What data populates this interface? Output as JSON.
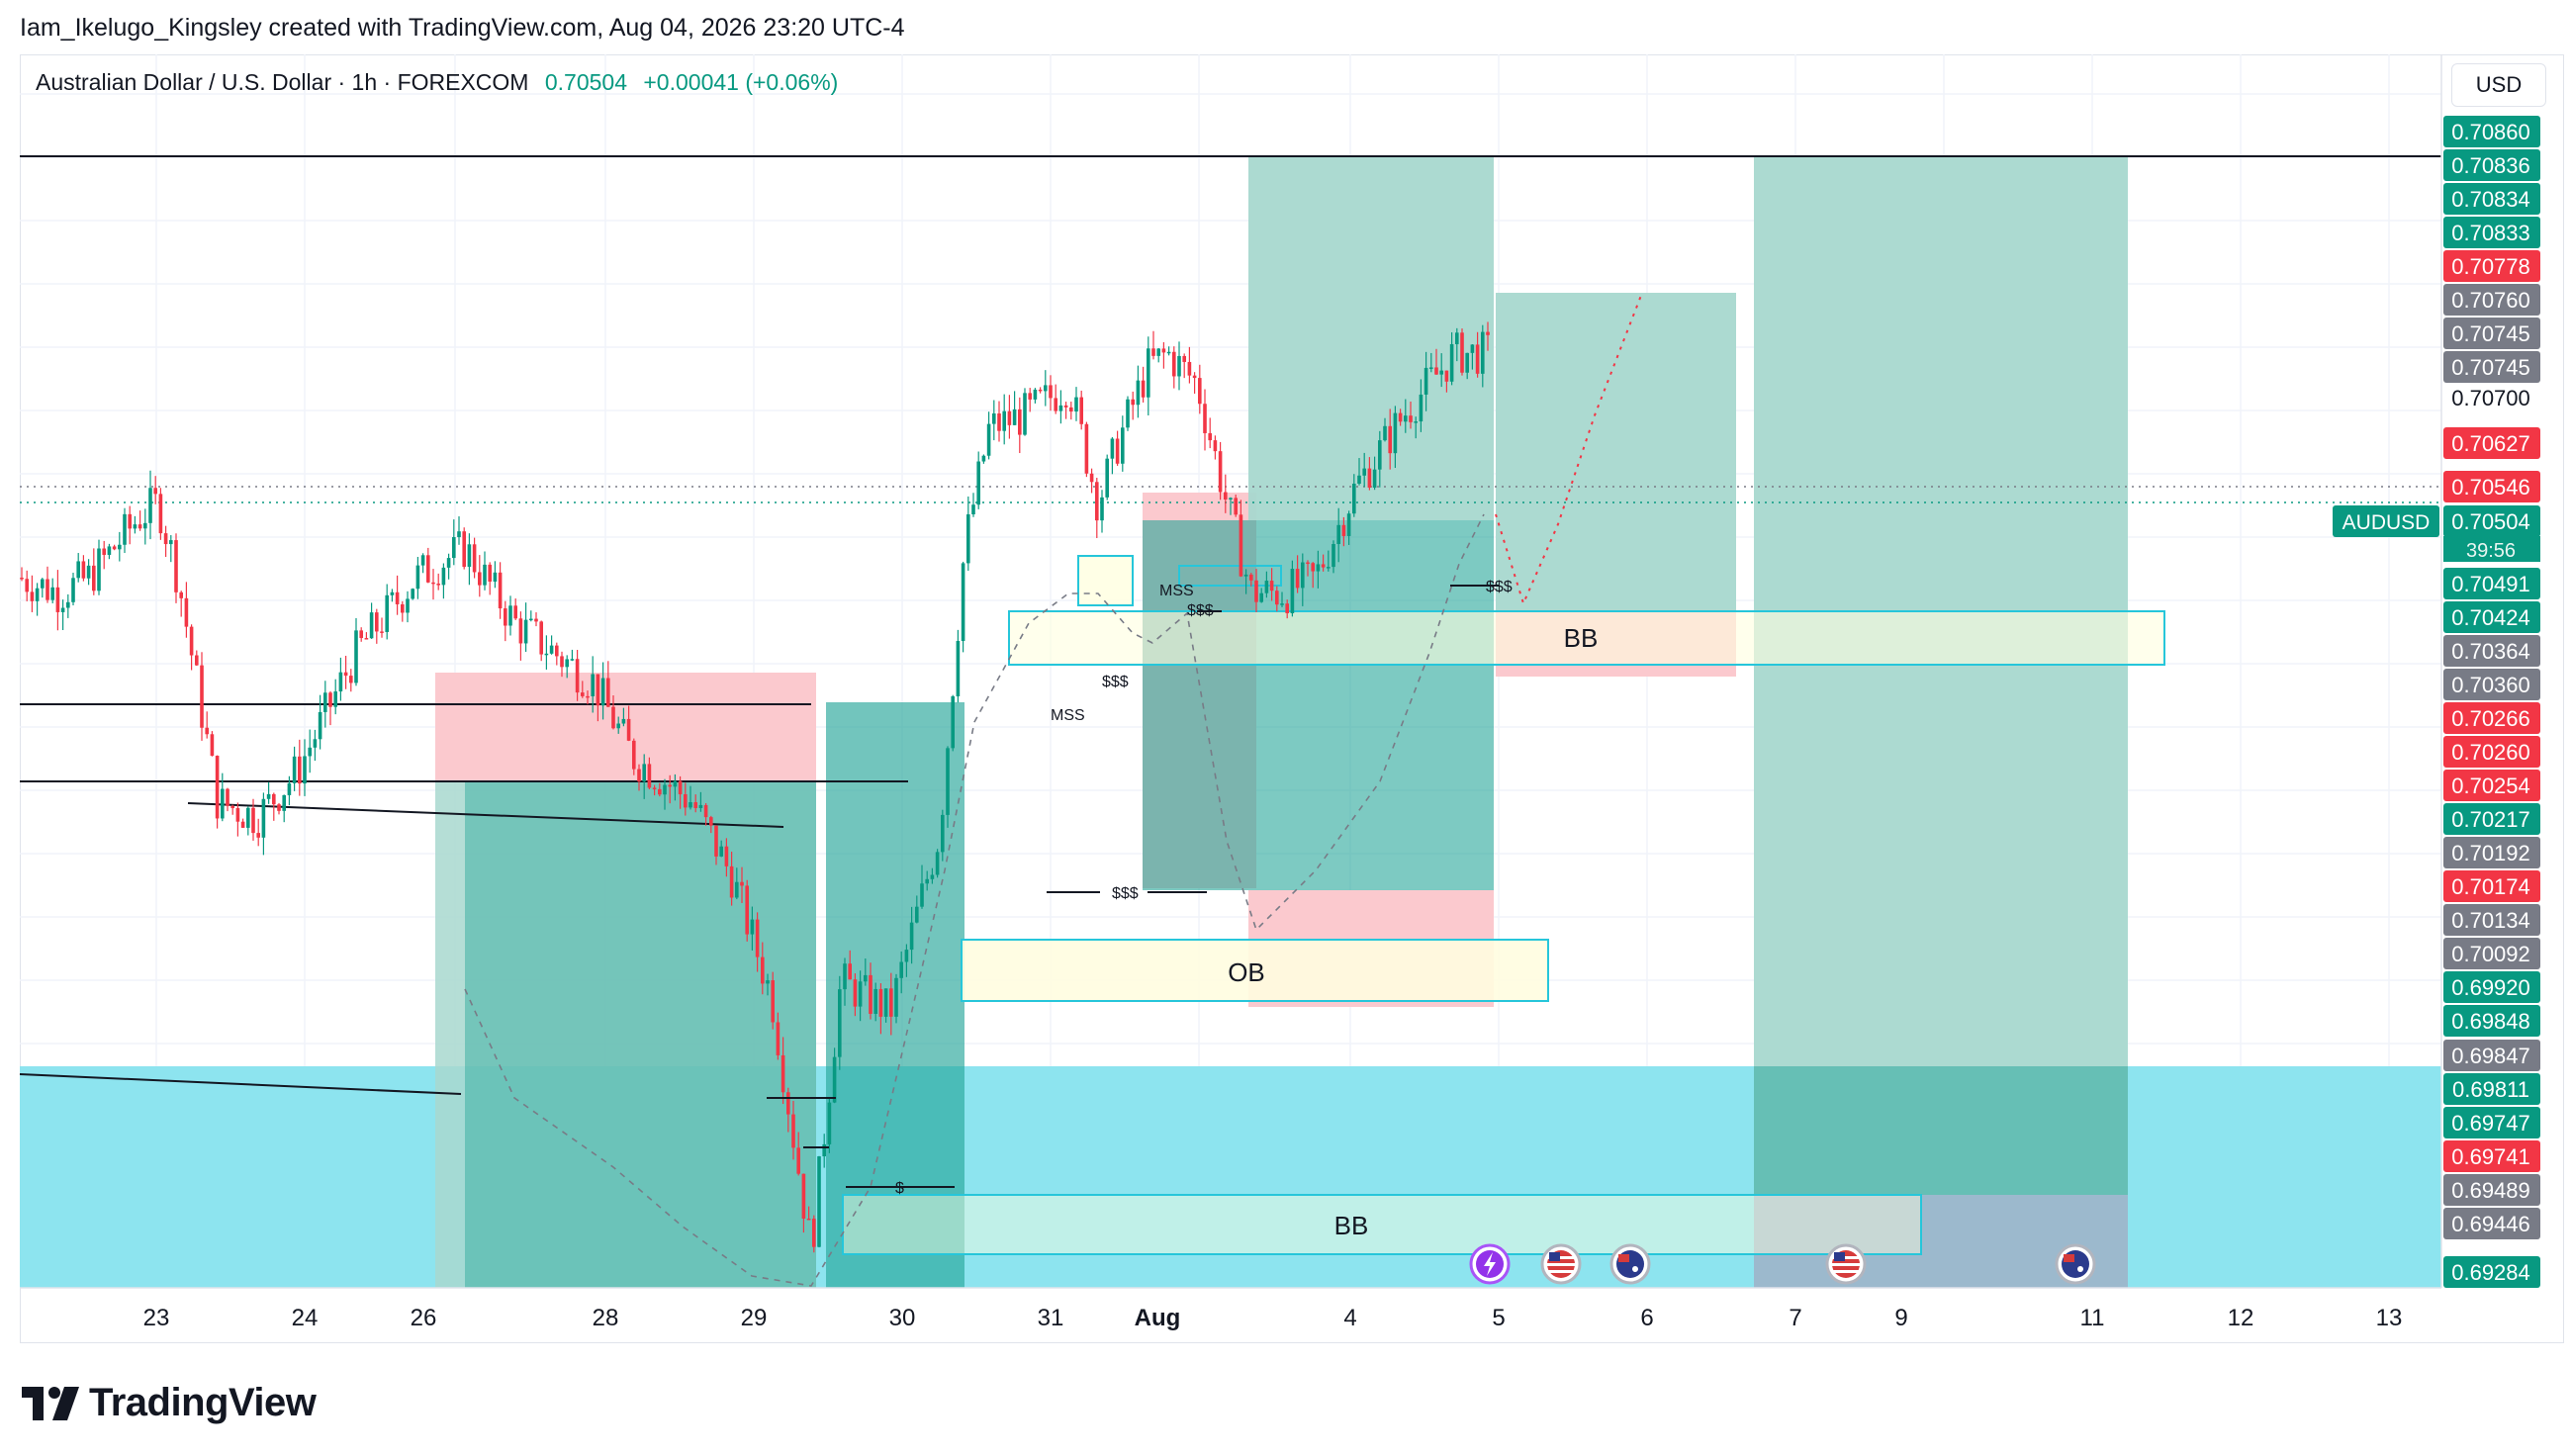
{
  "attribution": "Iam_Ikelugo_Kingsley created with TradingView.com, Aug 04, 2026 23:20 UTC-4",
  "legend": {
    "symbol": "Australian Dollar / U.S. Dollar · 1h · FOREXCOM",
    "price": "0.70504",
    "change": "+0.00041 (+0.06%)"
  },
  "currency_button": "USD",
  "brand": "TradingView",
  "colors": {
    "up": "#089981",
    "down": "#f23645",
    "tp_zone": "#a8d8cf",
    "sl_zone": "#fbc9ce",
    "demand_zone": "#8de4ef",
    "ob_fill": "#fffde0",
    "bb_fill": "#ffffe0",
    "cyan_border": "#26c6da"
  },
  "chart_data": {
    "type": "candlestick",
    "symbol": "AUDUSD",
    "timeframe": "1h",
    "ylim": [
      0.6925,
      0.709
    ],
    "x_ticks": [
      "23",
      "24",
      "26",
      "28",
      "29",
      "30",
      "31",
      "Aug",
      "4",
      "5",
      "6",
      "7",
      "9",
      "11",
      "12",
      "13"
    ],
    "last_price": {
      "tag": "AUDUSD",
      "value": "0.70504",
      "countdown": "39:56"
    },
    "y_axis_labels": [
      {
        "value": "0.70860",
        "style": "green"
      },
      {
        "value": "0.70836",
        "style": "green"
      },
      {
        "value": "0.70834",
        "style": "green"
      },
      {
        "value": "0.70833",
        "style": "green"
      },
      {
        "value": "0.70778",
        "style": "red"
      },
      {
        "value": "0.70760",
        "style": "gray"
      },
      {
        "value": "0.70745",
        "style": "gray"
      },
      {
        "value": "0.70745",
        "style": "gray"
      },
      {
        "value": "0.70700",
        "style": "plain"
      },
      {
        "value": "0.70627",
        "style": "red"
      },
      {
        "value": "0.70546",
        "style": "red"
      },
      {
        "value": "0.70504",
        "style": "green"
      },
      {
        "value": "0.70491",
        "style": "green"
      },
      {
        "value": "0.70424",
        "style": "green"
      },
      {
        "value": "0.70364",
        "style": "gray"
      },
      {
        "value": "0.70360",
        "style": "gray"
      },
      {
        "value": "0.70266",
        "style": "red"
      },
      {
        "value": "0.70260",
        "style": "red"
      },
      {
        "value": "0.70254",
        "style": "red"
      },
      {
        "value": "0.70217",
        "style": "green"
      },
      {
        "value": "0.70192",
        "style": "gray"
      },
      {
        "value": "0.70174",
        "style": "red"
      },
      {
        "value": "0.70134",
        "style": "gray"
      },
      {
        "value": "0.70092",
        "style": "gray"
      },
      {
        "value": "0.69920",
        "style": "green"
      },
      {
        "value": "0.69848",
        "style": "green"
      },
      {
        "value": "0.69847",
        "style": "gray"
      },
      {
        "value": "0.69811",
        "style": "green"
      },
      {
        "value": "0.69747",
        "style": "green"
      },
      {
        "value": "0.69741",
        "style": "red"
      },
      {
        "value": "0.69489",
        "style": "gray"
      },
      {
        "value": "0.69446",
        "style": "gray"
      },
      {
        "value": "0.69284",
        "style": "green"
      }
    ],
    "annotations": [
      "BB",
      "OB",
      "BB",
      "MSS",
      "MSS",
      "$$$",
      "$$$",
      "$$$",
      "$$$",
      "$"
    ],
    "zones": [
      {
        "kind": "sl",
        "label": ""
      },
      {
        "kind": "tp",
        "label": ""
      },
      {
        "kind": "order-block",
        "label": "OB"
      },
      {
        "kind": "breaker-block",
        "label": "BB"
      }
    ],
    "events": [
      "lightning-icon",
      "us-flag-icon",
      "au-flag-icon",
      "us-flag-icon",
      "au-flag-icon"
    ]
  }
}
